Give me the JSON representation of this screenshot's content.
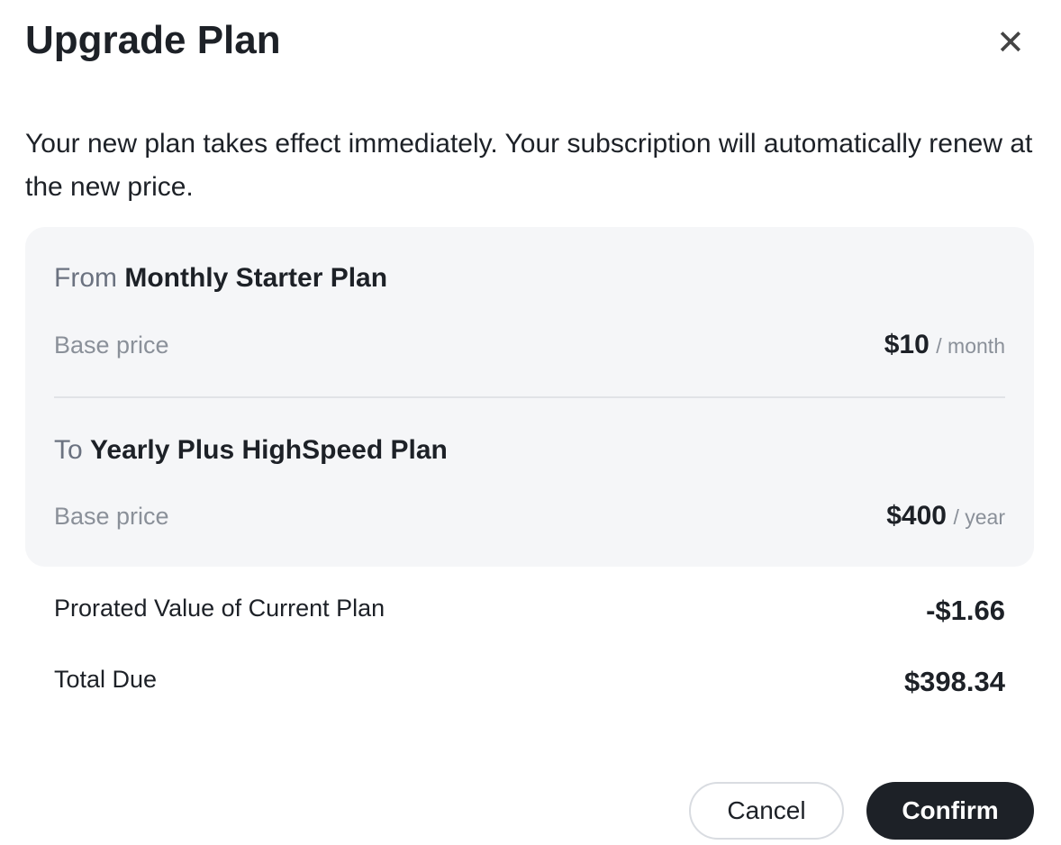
{
  "dialog": {
    "title": "Upgrade Plan",
    "description": "Your new plan takes effect immediately. Your subscription will automatically renew at the new price.",
    "from": {
      "prefix": "From",
      "plan": "Monthly Starter Plan",
      "price_label": "Base price",
      "price": "$10",
      "period": "/ month"
    },
    "to": {
      "prefix": "To",
      "plan": "Yearly Plus HighSpeed Plan",
      "price_label": "Base price",
      "price": "$400",
      "period": "/ year"
    },
    "prorated": {
      "label": "Prorated Value of Current Plan",
      "value": "-$1.66"
    },
    "total": {
      "label": "Total Due",
      "value": "$398.34"
    },
    "cancel_label": "Cancel",
    "confirm_label": "Confirm"
  }
}
